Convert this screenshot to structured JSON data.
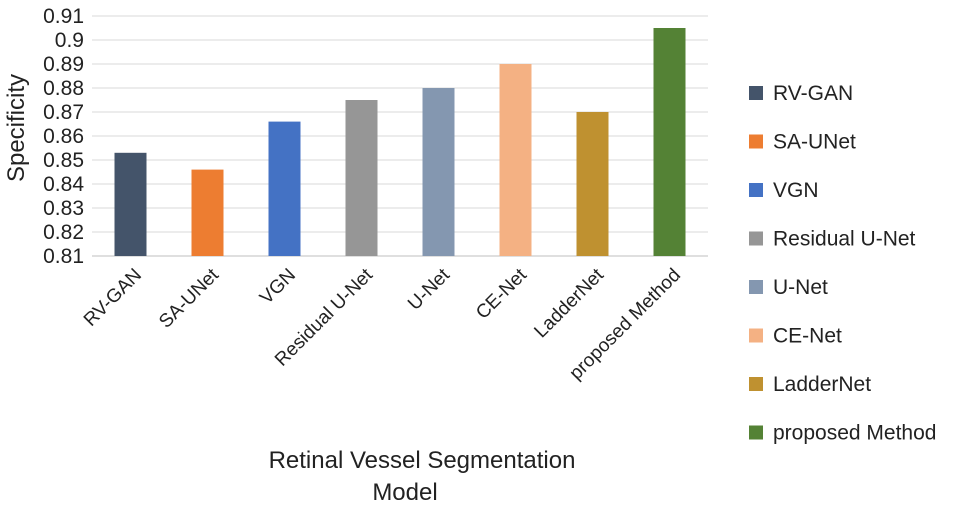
{
  "chart_data": {
    "type": "bar",
    "title": "",
    "xlabel_lines": [
      "Retinal Vessel Segmentation",
      "Model"
    ],
    "ylabel": "Specificity",
    "categories": [
      "RV-GAN",
      "SA-UNet",
      "VGN",
      "Residual U-Net",
      "U-Net",
      "CE-Net",
      "LadderNet",
      "proposed Method"
    ],
    "values": [
      0.853,
      0.846,
      0.866,
      0.875,
      0.88,
      0.89,
      0.87,
      0.905
    ],
    "colors": [
      "#44546A",
      "#ED7D31",
      "#4472C4",
      "#969696",
      "#8497B0",
      "#F4B183",
      "#BF9130",
      "#548235"
    ],
    "ylim": [
      0.81,
      0.91
    ],
    "yticks": [
      "0.81",
      "0.82",
      "0.83",
      "0.84",
      "0.85",
      "0.86",
      "0.87",
      "0.88",
      "0.89",
      "0.9",
      "0.91"
    ],
    "grid": true,
    "legend_position": "right"
  }
}
